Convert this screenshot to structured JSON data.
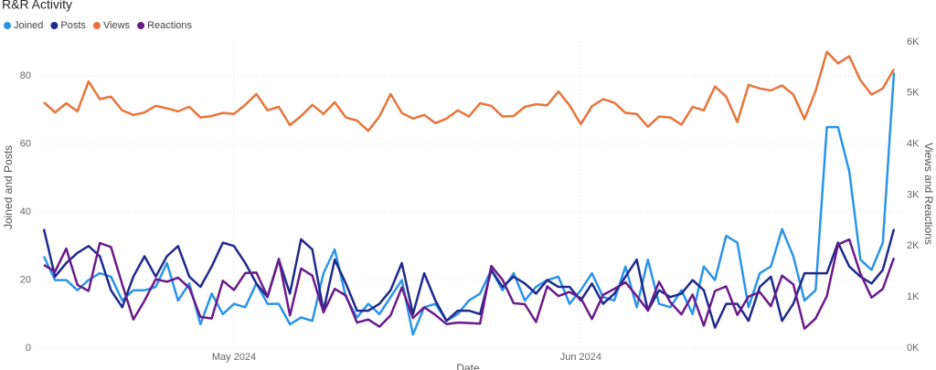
{
  "chart_data": {
    "type": "line",
    "title": "R&R Activity",
    "xlabel": "Date",
    "ylabel": "Joined and Posts",
    "y2label": "Views and Reactions",
    "categories": [
      null,
      null,
      null,
      null,
      null,
      null,
      null,
      null,
      null,
      null,
      null,
      null,
      null,
      null,
      null,
      null,
      null,
      "May 2024",
      null,
      null,
      null,
      null,
      null,
      null,
      null,
      null,
      null,
      null,
      null,
      null,
      null,
      null,
      null,
      null,
      null,
      null,
      null,
      null,
      null,
      null,
      null,
      null,
      null,
      null,
      null,
      null,
      null,
      null,
      "Jun 2024",
      null,
      null,
      null,
      null,
      null,
      null,
      null,
      null,
      null,
      null,
      null,
      null,
      null,
      null,
      null,
      null,
      null,
      null,
      null,
      null,
      null,
      null,
      null,
      null,
      null,
      null,
      null,
      null
    ],
    "ylim": [
      0,
      90
    ],
    "yticks": [
      0,
      20,
      40,
      60,
      80
    ],
    "y2lim": [
      0,
      6000
    ],
    "y2ticks": [
      {
        "value": 0,
        "label": "0K"
      },
      {
        "value": 1000,
        "label": "1K"
      },
      {
        "value": 2000,
        "label": "2K"
      },
      {
        "value": 3000,
        "label": "3K"
      },
      {
        "value": 4000,
        "label": "4K"
      },
      {
        "value": 5000,
        "label": "5K"
      },
      {
        "value": 6000,
        "label": "6K"
      }
    ],
    "grid": true,
    "legend": "top-left",
    "series": [
      {
        "name": "Joined",
        "color": "#2b94e8",
        "values": [
          27,
          20,
          20,
          17,
          20,
          22,
          21,
          14,
          17,
          17,
          18,
          25,
          14,
          19,
          7,
          16,
          10,
          13,
          12,
          19,
          13,
          13,
          7,
          9,
          8,
          22,
          29,
          15,
          9,
          13,
          10,
          15,
          20,
          4,
          12,
          13,
          8,
          10,
          14,
          16,
          23,
          17,
          22,
          14,
          18,
          20,
          21,
          13,
          17,
          22,
          15,
          14,
          24,
          12,
          26,
          13,
          12,
          17,
          10,
          24,
          20,
          33,
          31,
          12,
          22,
          24,
          35,
          27,
          14,
          17,
          65,
          65,
          52,
          26,
          23,
          31,
          81
        ]
      },
      {
        "name": "Posts",
        "color": "#1f2a8c",
        "values": [
          35,
          21,
          25,
          28,
          30,
          27,
          17,
          12,
          21,
          27,
          21,
          27,
          30,
          21,
          18,
          24,
          31,
          30,
          25,
          19,
          15,
          26,
          16,
          32,
          29,
          11,
          26,
          19,
          11,
          11,
          13,
          17,
          25,
          10,
          22,
          14,
          8,
          11,
          11,
          10,
          23,
          18,
          21,
          19,
          16,
          20,
          18,
          18,
          14,
          19,
          13,
          16,
          21,
          26,
          11,
          17,
          15,
          16,
          20,
          17,
          6,
          13,
          13,
          8,
          18,
          21,
          8,
          13,
          22,
          22,
          22,
          31,
          24,
          21,
          19,
          23,
          35
        ]
      },
      {
        "name": "Views",
        "color": "#e8743b",
        "axis": "y2",
        "values": [
          4820,
          4620,
          4800,
          4640,
          5230,
          4880,
          4930,
          4660,
          4570,
          4620,
          4750,
          4700,
          4640,
          4730,
          4520,
          4550,
          4610,
          4590,
          4770,
          4980,
          4660,
          4730,
          4370,
          4550,
          4770,
          4590,
          4820,
          4520,
          4460,
          4260,
          4540,
          4980,
          4610,
          4500,
          4570,
          4410,
          4500,
          4660,
          4540,
          4800,
          4750,
          4540,
          4550,
          4730,
          4780,
          4760,
          5030,
          4760,
          4390,
          4740,
          4880,
          4810,
          4610,
          4590,
          4340,
          4540,
          4520,
          4380,
          4730,
          4660,
          5130,
          4930,
          4430,
          5160,
          5090,
          5050,
          5150,
          4970,
          4490,
          5040,
          5810,
          5580,
          5720,
          5250,
          4970,
          5090,
          5470
        ]
      },
      {
        "name": "Reactions",
        "color": "#6a1b8a",
        "axis": "y2",
        "values": [
          1630,
          1500,
          1950,
          1240,
          1120,
          2060,
          1980,
          1250,
          560,
          930,
          1350,
          1300,
          1380,
          1180,
          610,
          580,
          1320,
          1140,
          1470,
          1480,
          1010,
          1750,
          640,
          1560,
          1420,
          700,
          1160,
          1030,
          500,
          560,
          420,
          640,
          1190,
          590,
          800,
          650,
          470,
          500,
          490,
          480,
          1610,
          1340,
          880,
          860,
          510,
          1210,
          1020,
          1100,
          980,
          570,
          1040,
          1160,
          1290,
          1020,
          740,
          1300,
          900,
          660,
          1050,
          440,
          1120,
          1210,
          650,
          1010,
          1100,
          820,
          1420,
          1250,
          380,
          580,
          1020,
          2030,
          2130,
          1460,
          990,
          1160,
          1770
        ]
      }
    ]
  }
}
